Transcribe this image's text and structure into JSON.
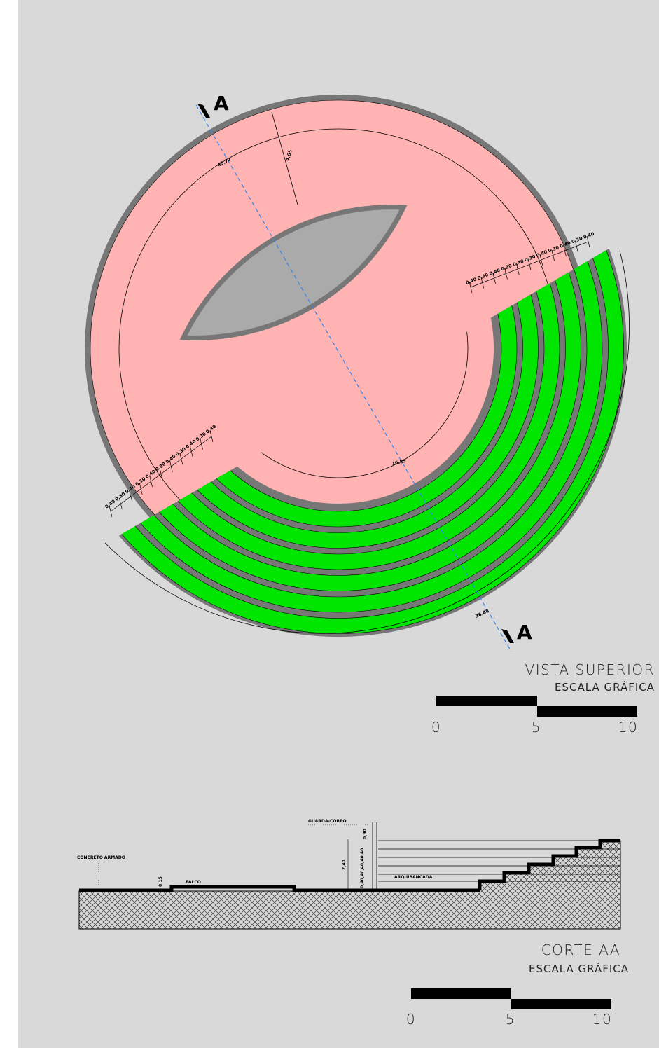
{
  "plan": {
    "title": "VISTA SUPERIOR",
    "scale_title": "ESCALA GRÁFICA",
    "scale_labels": [
      0,
      5,
      10
    ],
    "section_marks": [
      "A",
      "A"
    ],
    "dimensions": [
      "43,72",
      "4,65",
      "16,85",
      "36,48"
    ],
    "step_dims_right": [
      "0,40",
      "0,30",
      "0,40",
      "0,30",
      "0,40",
      "0,30",
      "0,40",
      "0,30",
      "0,40",
      "0,30",
      "0,40"
    ],
    "step_dims_left": [
      "0,40",
      "0,30",
      "0,40",
      "0,30",
      "0,40",
      "0,30",
      "0,40",
      "0,30",
      "0,40",
      "0,30",
      "0,40"
    ]
  },
  "section": {
    "title": "CORTE AA",
    "scale_title": "ESCALA GRÁFICA",
    "scale_labels": [
      0,
      5,
      10
    ],
    "labels": {
      "guard": "GUARDA-CORPO",
      "concrete": "CONCRETO ARMADO",
      "stage": "PALCO",
      "stands": "ARQUIBANCADA"
    },
    "dimensions": [
      "0,15",
      "2,40",
      "0,90",
      "0,40,40,40,40,40"
    ]
  }
}
